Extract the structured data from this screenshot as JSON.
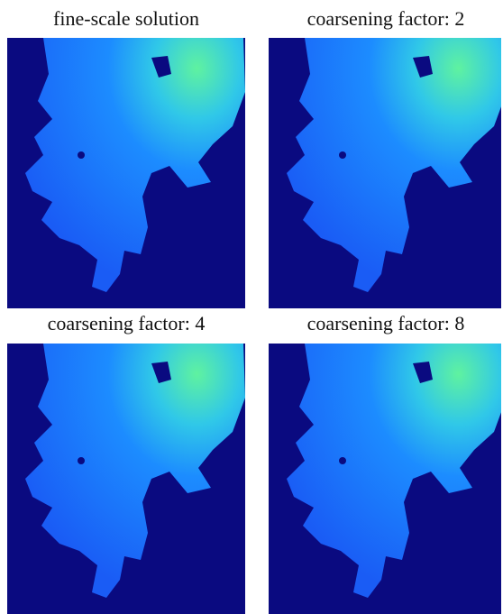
{
  "panels": [
    {
      "title": "fine-scale solution"
    },
    {
      "title": "coarsening factor: 2"
    },
    {
      "title": "coarsening factor: 4"
    },
    {
      "title": "coarsening factor: 8"
    }
  ]
}
